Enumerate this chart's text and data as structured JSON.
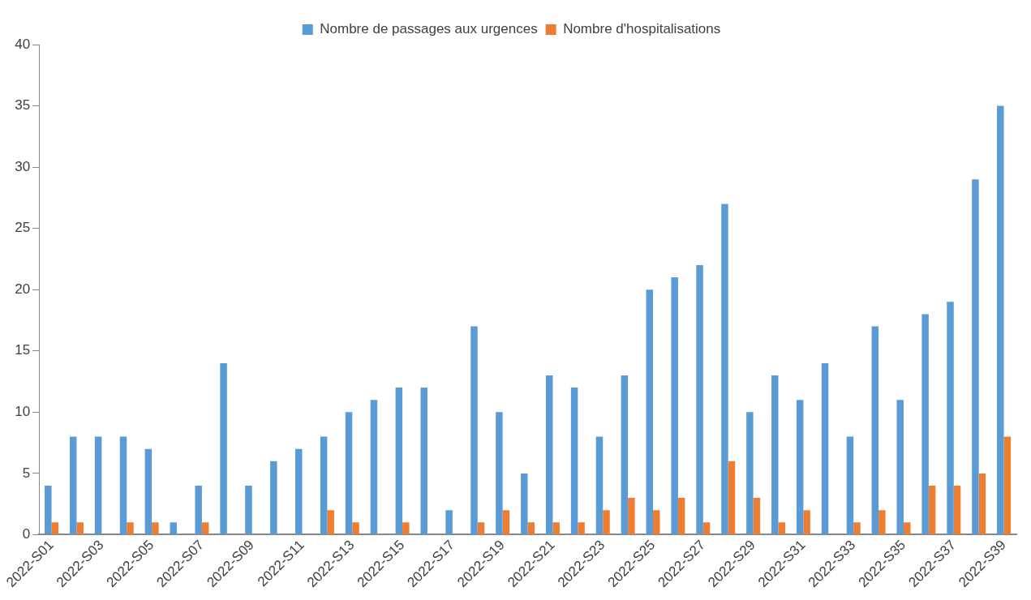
{
  "chart_data": {
    "type": "bar",
    "categories": [
      "2022-S01",
      null,
      "2022-S03",
      null,
      "2022-S05",
      null,
      "2022-S07",
      null,
      "2022-S09",
      null,
      "2022-S11",
      null,
      "2022-S13",
      null,
      "2022-S15",
      null,
      "2022-S17",
      null,
      "2022-S19",
      null,
      "2022-S21",
      null,
      "2022-S23",
      null,
      "2022-S25",
      null,
      "2022-S27",
      null,
      "2022-S29",
      null,
      "2022-S31",
      null,
      "2022-S33",
      null,
      "2022-S35",
      null,
      "2022-S37",
      null,
      "2022-S39"
    ],
    "series": [
      {
        "name": "Nombre de passages aux urgences",
        "color": "#5b9bd5",
        "values": [
          4,
          8,
          8,
          8,
          7,
          1,
          4,
          14,
          4,
          6,
          7,
          8,
          10,
          11,
          12,
          12,
          2,
          17,
          10,
          5,
          13,
          12,
          8,
          13,
          20,
          21,
          22,
          27,
          10,
          13,
          11,
          14,
          8,
          17,
          11,
          18,
          19,
          29,
          35
        ]
      },
      {
        "name": "Nombre d'hospitalisations",
        "color": "#ed7d31",
        "values": [
          1,
          1,
          0,
          1,
          1,
          0,
          1,
          0,
          0,
          0,
          0,
          2,
          1,
          0,
          1,
          0,
          0,
          1,
          2,
          1,
          1,
          1,
          2,
          3,
          2,
          3,
          1,
          6,
          3,
          1,
          2,
          0,
          1,
          2,
          1,
          4,
          4,
          5,
          8
        ]
      }
    ],
    "ylim": [
      0,
      40
    ],
    "yticks": [
      0,
      5,
      10,
      15,
      20,
      25,
      30,
      35,
      40
    ],
    "grid": false,
    "legend": "top"
  }
}
